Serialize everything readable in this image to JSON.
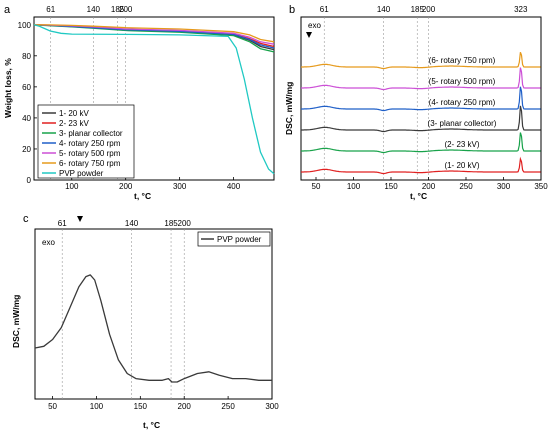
{
  "chart_data": [
    {
      "panel": "a",
      "type": "line",
      "xlabel": "t, °C",
      "ylabel": "Weight loss, %",
      "xlim": [
        30,
        475
      ],
      "ylim": [
        0,
        105
      ],
      "xticks": [
        100,
        200,
        300,
        400
      ],
      "yticks": [
        0,
        20,
        40,
        60,
        80,
        100
      ],
      "ref_lines": [
        61,
        140,
        185,
        200
      ],
      "legend_position": "bottom-left",
      "series": [
        {
          "name": "1- 20 kV",
          "color": "#3a3a3a",
          "x": [
            30,
            60,
            100,
            140,
            180,
            200,
            300,
            400,
            430,
            450,
            475
          ],
          "y": [
            100,
            99.5,
            98.8,
            98,
            97,
            96.5,
            95.5,
            93.5,
            90,
            86,
            84
          ]
        },
        {
          "name": "2- 23 kV",
          "color": "#e02020",
          "x": [
            30,
            60,
            100,
            140,
            180,
            200,
            300,
            400,
            430,
            450,
            475
          ],
          "y": [
            100,
            99.7,
            99,
            98.3,
            97.5,
            97,
            96,
            94,
            91,
            88,
            86
          ]
        },
        {
          "name": "3- planar collector",
          "color": "#18a24a",
          "x": [
            30,
            60,
            100,
            140,
            180,
            200,
            300,
            400,
            430,
            450,
            475
          ],
          "y": [
            100,
            99.4,
            98.6,
            97.8,
            96.8,
            96.3,
            95.2,
            93,
            89,
            84.5,
            82.5
          ]
        },
        {
          "name": "4- rotary 250 rpm",
          "color": "#1f5fc8",
          "x": [
            30,
            60,
            100,
            140,
            180,
            200,
            300,
            400,
            430,
            450,
            475
          ],
          "y": [
            100,
            99.6,
            98.9,
            98.1,
            97.2,
            96.8,
            95.8,
            93.8,
            90.5,
            87,
            85
          ]
        },
        {
          "name": "5- rotary 500 rpm",
          "color": "#cc4fd6",
          "x": [
            30,
            60,
            100,
            140,
            180,
            200,
            300,
            400,
            430,
            450,
            475
          ],
          "y": [
            100,
            99.8,
            99.3,
            98.6,
            97.8,
            97.3,
            96.4,
            94.5,
            92,
            89,
            87.5
          ]
        },
        {
          "name": "6- rotary 750 rpm",
          "color": "#e69a1c",
          "x": [
            30,
            60,
            100,
            140,
            180,
            200,
            300,
            400,
            430,
            450,
            475
          ],
          "y": [
            100,
            99.9,
            99.6,
            99.1,
            98.5,
            98.1,
            97.3,
            95.5,
            93.5,
            90.5,
            89
          ]
        },
        {
          "name": "PVP powder",
          "color": "#20c9c3",
          "x": [
            30,
            40,
            60,
            80,
            100,
            200,
            300,
            390,
            405,
            420,
            435,
            450,
            465,
            475
          ],
          "y": [
            100,
            99,
            96,
            94.5,
            94,
            93.8,
            93.5,
            92.5,
            85,
            65,
            40,
            18,
            7,
            4
          ]
        }
      ]
    },
    {
      "panel": "b",
      "type": "line",
      "xlabel": "t, °C",
      "ylabel": "DSC, mW/mg",
      "xlim": [
        30,
        350
      ],
      "xticks": [
        50,
        100,
        150,
        200,
        250,
        300,
        350
      ],
      "ref_lines": [
        61,
        140,
        185,
        200
      ],
      "top_labels": [
        "61",
        "140",
        "185",
        "200",
        "323"
      ],
      "exo_label": "exo",
      "series": [
        {
          "name": "(1- 20 kV)",
          "color": "#e02020",
          "offset": 0
        },
        {
          "name": "(2- 23 kV)",
          "color": "#18a24a",
          "offset": 1
        },
        {
          "name": "(3- planar collector)",
          "color": "#3a3a3a",
          "offset": 2
        },
        {
          "name": "(4- rotary 250 rpm)",
          "color": "#1f5fc8",
          "offset": 3
        },
        {
          "name": "(5- rotary 500 rpm)",
          "color": "#cc4fd6",
          "offset": 4
        },
        {
          "name": "(6- rotary 750 rpm)",
          "color": "#e69a1c",
          "offset": 5
        }
      ]
    },
    {
      "panel": "c",
      "type": "line",
      "xlabel": "t, °C",
      "ylabel": "DSC, mW/mg",
      "xlim": [
        30,
        300
      ],
      "xticks": [
        50,
        100,
        150,
        200,
        250,
        300
      ],
      "ref_lines": [
        61,
        140,
        185,
        200
      ],
      "top_labels": [
        "61",
        "140",
        "185",
        "200"
      ],
      "exo_label": "exo",
      "legend_position": "top-right",
      "series": [
        {
          "name": "PVP powder",
          "color": "#3a3a3a",
          "x": [
            30,
            40,
            50,
            60,
            70,
            80,
            88,
            93,
            98,
            105,
            115,
            125,
            135,
            145,
            160,
            175,
            182,
            186,
            192,
            200,
            215,
            228,
            240,
            255,
            270,
            285,
            300
          ],
          "y": [
            0.3,
            0.31,
            0.35,
            0.42,
            0.54,
            0.66,
            0.72,
            0.73,
            0.7,
            0.58,
            0.38,
            0.23,
            0.15,
            0.12,
            0.11,
            0.11,
            0.12,
            0.1,
            0.1,
            0.12,
            0.15,
            0.16,
            0.14,
            0.12,
            0.12,
            0.11,
            0.11
          ]
        }
      ]
    }
  ],
  "panel_labels": {
    "a": "a",
    "b": "b",
    "c": "c"
  }
}
